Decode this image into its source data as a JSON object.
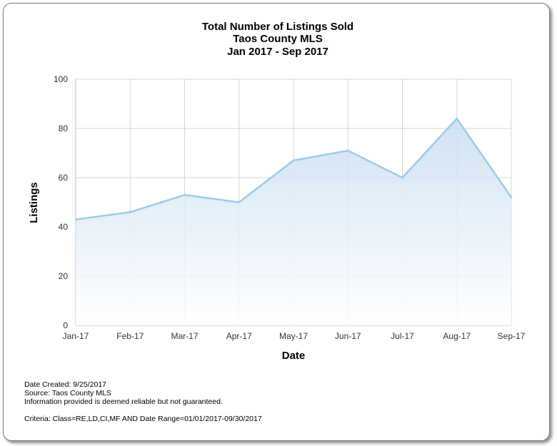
{
  "chart_data": {
    "type": "area",
    "title": [
      "Total Number of Listings Sold",
      "Taos County MLS",
      "Jan 2017 - Sep 2017"
    ],
    "xlabel": "Date",
    "ylabel": "Listings",
    "categories": [
      "Jan-17",
      "Feb-17",
      "Mar-17",
      "Apr-17",
      "May-17",
      "Jun-17",
      "Jul-17",
      "Aug-17",
      "Sep-17"
    ],
    "series": [
      {
        "values": [
          43,
          46,
          53,
          50,
          67,
          71,
          60,
          84,
          52
        ]
      }
    ],
    "ylim": [
      0,
      100
    ],
    "yticks": [
      0,
      20,
      40,
      60,
      80,
      100
    ],
    "grid": true,
    "line_color": "#9ccaea",
    "fill_color_top": "#c9def0",
    "fill_color_bottom": "#ffffff"
  },
  "footer": {
    "date_created": "Date Created: 9/25/2017",
    "source": "Source: Taos County MLS",
    "disclaimer": "Information provided is deemed reliable but not guaranteed.",
    "criteria": "Criteria: Class=RE,LD,CI,MF AND Date Range=01/01/2017-09/30/2017"
  }
}
